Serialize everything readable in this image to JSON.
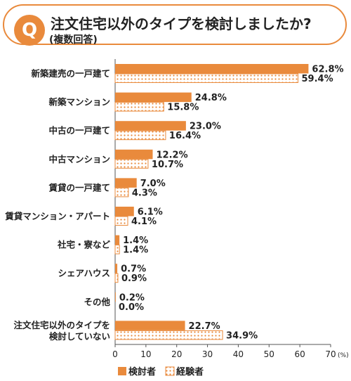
{
  "header": {
    "badge": "Q",
    "title": "注文住宅以外のタイプを検討しましたか?",
    "subtitle": "(複数回答)"
  },
  "colors": {
    "accent": "#e98a3c",
    "dot": "#e98a3c",
    "text": "#222222"
  },
  "chart_data": {
    "type": "bar",
    "orientation": "horizontal",
    "categories": [
      [
        "新築建売の一戸建て"
      ],
      [
        "新築マンション"
      ],
      [
        "中古の一戸建て"
      ],
      [
        "中古マンション"
      ],
      [
        "賃貸の一戸建て"
      ],
      [
        "賃貸マンション・アパート"
      ],
      [
        "社宅・寮など"
      ],
      [
        "シェアハウス"
      ],
      [
        "その他"
      ],
      [
        "注文住宅以外のタイプを",
        "検討していない"
      ]
    ],
    "series": [
      {
        "name": "検討者",
        "style": "solid",
        "values": [
          62.8,
          24.8,
          23.0,
          12.2,
          7.0,
          6.1,
          1.4,
          0.7,
          0.2,
          22.7
        ],
        "labels": [
          "62.8%",
          "24.8%",
          "23.0%",
          "12.2%",
          "7.0%",
          "6.1%",
          "1.4%",
          "0.7%",
          "0.2%",
          "22.7%"
        ]
      },
      {
        "name": "経験者",
        "style": "dotted",
        "values": [
          59.4,
          15.8,
          16.4,
          10.7,
          4.3,
          4.1,
          1.4,
          0.9,
          0.0,
          34.9
        ],
        "labels": [
          "59.4%",
          "15.8%",
          "16.4%",
          "10.7%",
          "4.3%",
          "4.1%",
          "1.4%",
          "0.9%",
          "0.0%",
          "34.9%"
        ]
      }
    ],
    "xlim": [
      0,
      70
    ],
    "xticks": [
      0,
      10,
      20,
      30,
      40,
      50,
      60,
      70
    ],
    "xunit": "(%)",
    "legend_position": "bottom-left"
  }
}
